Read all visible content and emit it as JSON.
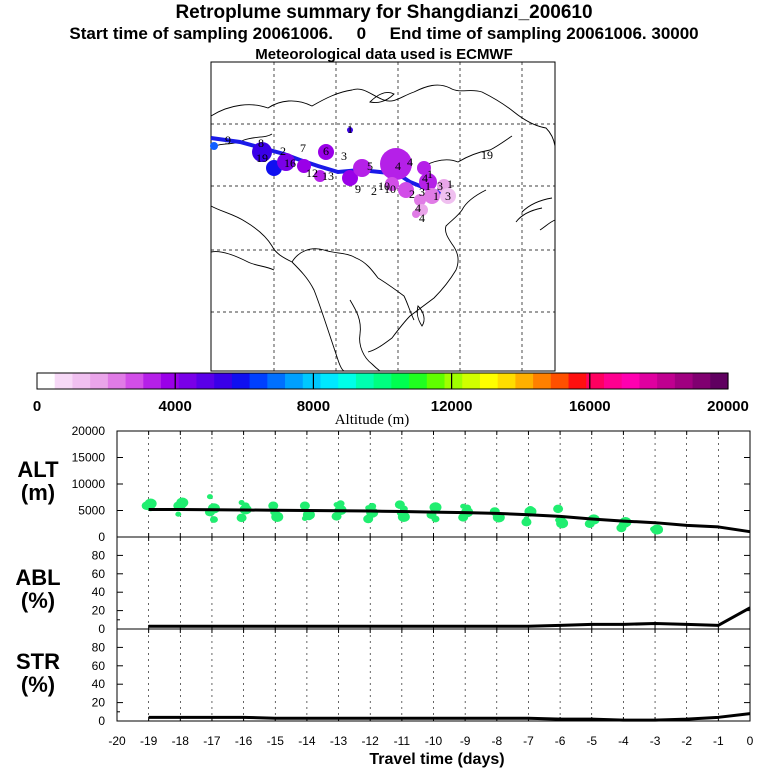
{
  "title": {
    "line1": "Retroplume summary for Shangdianzi_200610",
    "line2": "Start time of sampling 20061006.     0     End time of sampling 20061006. 30000",
    "line3": "Meteorological data used is ECMWF"
  },
  "colorbar": {
    "title": "Altitude (m)",
    "tick_labels": [
      "0",
      "4000",
      "8000",
      "12000",
      "16000",
      "20000"
    ],
    "colors": [
      "#ffffff",
      "#f7d9f7",
      "#f0c0f0",
      "#eaa5ea",
      "#e07be6",
      "#d24ee8",
      "#b520e8",
      "#9a00e8",
      "#7a00e8",
      "#5a00e8",
      "#3a00e8",
      "#1010f0",
      "#0040ff",
      "#0070ff",
      "#00a0ff",
      "#00c8ff",
      "#00e8ff",
      "#00ffe8",
      "#00ffb0",
      "#00ff80",
      "#00ff50",
      "#20ff20",
      "#60ff00",
      "#a0ff00",
      "#d0ff00",
      "#ffff00",
      "#ffdd00",
      "#ffb000",
      "#ff8000",
      "#ff5000",
      "#ff1010",
      "#ff0060",
      "#ff0090",
      "#ff00b0",
      "#e000a0",
      "#c00090",
      "#a00080",
      "#800070",
      "#600060"
    ]
  },
  "map": {
    "plume_labels": [
      "9",
      "8",
      "2",
      "7",
      "6",
      "5",
      "4",
      "3",
      "19",
      "16",
      "12",
      "13",
      "4",
      "10",
      "2",
      "3",
      "1",
      "1",
      "9",
      "2",
      "1",
      "10",
      "3",
      "4",
      "1",
      "3",
      "4",
      "19",
      "4",
      "1"
    ]
  },
  "chart_data": [
    {
      "type": "line",
      "panel_label_1": "ALT",
      "panel_label_2": "(m)",
      "x": [
        -19,
        -18,
        -17,
        -16,
        -15,
        -14,
        -13,
        -12,
        -11,
        -10,
        -9,
        -8,
        -7,
        -6,
        -5,
        -4,
        -3,
        -2,
        -1,
        0
      ],
      "series": [
        {
          "name": "mean altitude",
          "values": [
            5200,
            5200,
            5150,
            5100,
            5050,
            5000,
            4950,
            4900,
            4800,
            4700,
            4600,
            4450,
            4200,
            3900,
            3400,
            3000,
            2700,
            2200,
            1900,
            1000
          ]
        }
      ],
      "scatter_altitudes": [
        5600,
        6300,
        5900,
        5500,
        4300,
        6500,
        5900,
        6000,
        7600,
        5400,
        4700,
        3300,
        6500,
        5200,
        3600,
        5900,
        4600,
        3800,
        5900,
        4200,
        3500,
        4200,
        5900,
        3800,
        6100,
        5100,
        3900,
        6300,
        5500,
        4600,
        3400,
        5800,
        4500,
        3800,
        6100,
        5300,
        4000,
        5600,
        4200,
        3400,
        5800,
        4700,
        3700,
        5500,
        4400,
        3700,
        4800,
        3700,
        3400,
        4800,
        2800,
        5200,
        3200,
        2600,
        5300,
        3100,
        2200,
        3300,
        2500,
        3000,
        2300,
        2800,
        1700,
        2400,
        1500,
        1400
      ],
      "scatter_color": "#20ee70",
      "ylim": [
        0,
        20000
      ],
      "yticks": [
        "20000",
        "15000",
        "10000",
        "5000",
        "0"
      ]
    },
    {
      "type": "line",
      "panel_label_1": "ABL",
      "panel_label_2": "(%)",
      "x": [
        -19,
        -18,
        -17,
        -16,
        -15,
        -14,
        -13,
        -12,
        -11,
        -10,
        -9,
        -8,
        -7,
        -6,
        -5,
        -4,
        -3,
        -2,
        -1,
        0
      ],
      "series": [
        {
          "name": "ABL fraction",
          "values": [
            3,
            3,
            3,
            3,
            3,
            3,
            3,
            3,
            3,
            3,
            3,
            3,
            3,
            4,
            5,
            5,
            6,
            5,
            4,
            23
          ]
        }
      ],
      "ylim": [
        0,
        100
      ],
      "yticks": [
        "80",
        "60",
        "40",
        "20",
        "0"
      ]
    },
    {
      "type": "line",
      "panel_label_1": "STR",
      "panel_label_2": "(%)",
      "x": [
        -19,
        -18,
        -17,
        -16,
        -15,
        -14,
        -13,
        -12,
        -11,
        -10,
        -9,
        -8,
        -7,
        -6,
        -5,
        -4,
        -3,
        -2,
        -1,
        0
      ],
      "series": [
        {
          "name": "STR fraction",
          "values": [
            4,
            4,
            4,
            4,
            3,
            3,
            3,
            3,
            3,
            3,
            3,
            3,
            3,
            2,
            2,
            1,
            1,
            2,
            4,
            8
          ]
        }
      ],
      "ylim": [
        0,
        100
      ],
      "yticks": [
        "80",
        "60",
        "40",
        "20",
        "0"
      ],
      "xlabel": "Travel time (days)",
      "xticks": [
        "-20",
        "-19",
        "-18",
        "-17",
        "-16",
        "-15",
        "-14",
        "-13",
        "-12",
        "-11",
        "-10",
        "-9",
        "-8",
        "-7",
        "-6",
        "-5",
        "-4",
        "-3",
        "-2",
        "-1",
        "0"
      ]
    }
  ]
}
